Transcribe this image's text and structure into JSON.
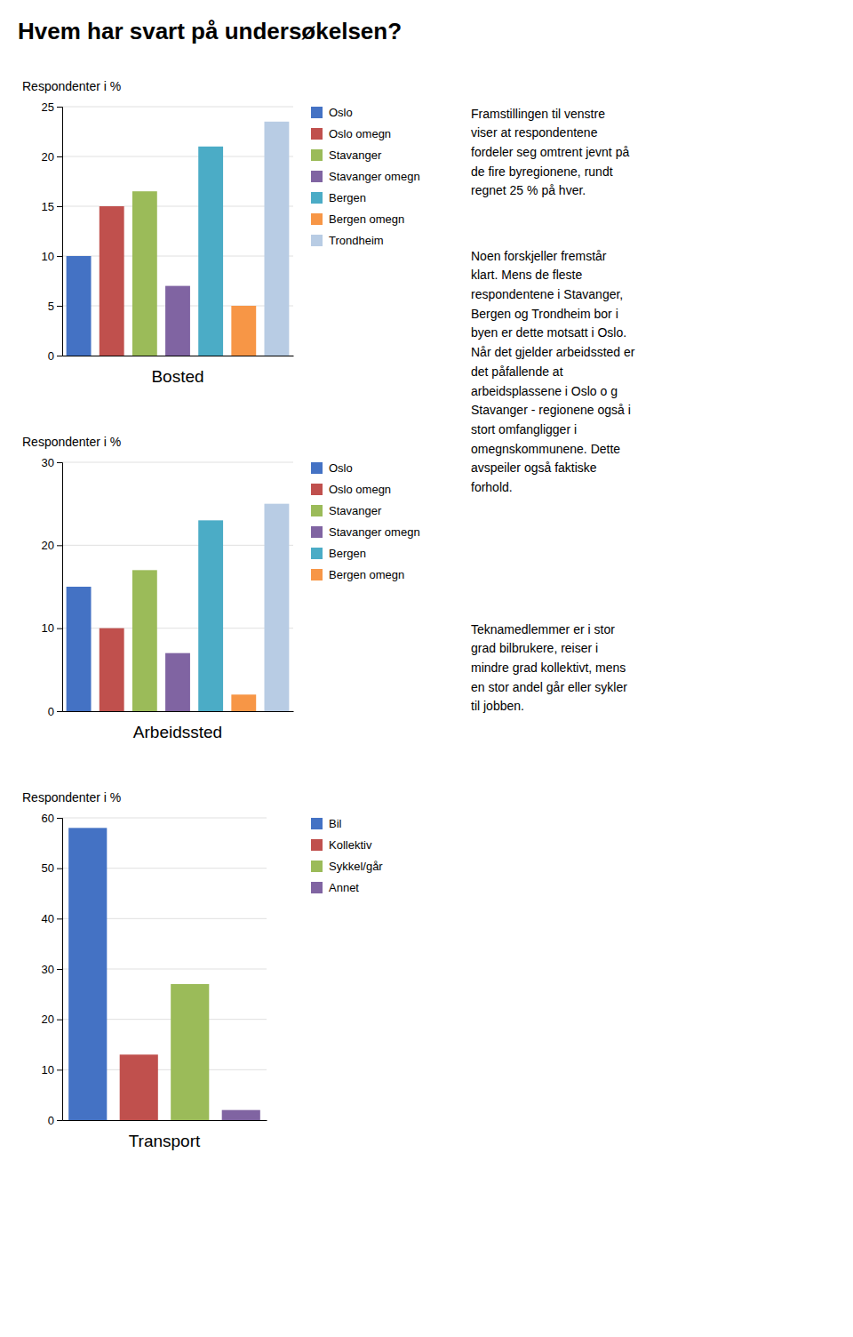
{
  "title": "Hvem har svart på undersøkelsen?",
  "annotations": [
    "Framstillingen til venstre\nviser at respondentene\nfordeler seg omtrent jevnt på\nde fire byregionene, rundt\nregnet 25 % på hver.",
    "Noen forskjeller fremstår\nklart. Mens de fleste\nrespondentene i Stavanger,\nBergen og Trondheim bor i\nbyen er dette motsatt i Oslo.\nNår det gjelder arbeidssted er\ndet påfallende at\narbeidsplassene i Oslo o g\nStavanger - regionene også i\nstort omfangligger i\nomegnskommunene. Dette\navspeiler også faktiske\nforhold.",
    "Teknamedlemmer er i stor\ngrad bilbrukere, reiser i\nmindre grad kollektivt, mens\nen stor andel går eller sykler\ntil jobben."
  ],
  "chart_data": [
    {
      "type": "bar",
      "xlabel": "Bosted",
      "ylabel": "Respondenter i %",
      "categories": [
        "Oslo",
        "Oslo omegn",
        "Stavanger",
        "Stavanger omegn",
        "Bergen",
        "Bergen omegn",
        "Trondheim"
      ],
      "values": [
        10,
        15,
        16.5,
        7,
        21,
        5,
        23.5
      ],
      "colors": [
        "#4472C4",
        "#C0504D",
        "#9BBB59",
        "#8064A2",
        "#4BACC6",
        "#F79646",
        "#B8CCE4"
      ],
      "ylim": [
        0,
        25
      ],
      "yticks": [
        0,
        5,
        10,
        15,
        20,
        25
      ],
      "grid": true,
      "legend": "right",
      "tick_labels": "y"
    },
    {
      "type": "bar",
      "xlabel": "Arbeidssted",
      "ylabel": "Respondenter i %",
      "categories": [
        "Oslo",
        "Oslo omegn",
        "Stavanger",
        "Stavanger omegn",
        "Bergen",
        "Bergen omegn",
        null
      ],
      "values": [
        15,
        10,
        17,
        7,
        23,
        2,
        25
      ],
      "colors": [
        "#4472C4",
        "#C0504D",
        "#9BBB59",
        "#8064A2",
        "#4BACC6",
        "#F79646",
        "#B8CCE4"
      ],
      "ylim": [
        0,
        30
      ],
      "yticks": [
        0,
        10,
        20,
        30
      ],
      "grid": true,
      "legend": "right",
      "tick_labels": "y"
    },
    {
      "type": "bar",
      "xlabel": "Transport",
      "ylabel": "Respondenter i %",
      "categories": [
        "Bil",
        "Kollektiv",
        "Sykkel/går",
        "Annet"
      ],
      "values": [
        58,
        13,
        27,
        2
      ],
      "colors": [
        "#4472C4",
        "#C0504D",
        "#9BBB59",
        "#8064A2"
      ],
      "ylim": [
        0,
        60
      ],
      "yticks": [
        0,
        10,
        20,
        30,
        40,
        50,
        60
      ],
      "grid": true,
      "legend": "right",
      "tick_labels": "y"
    }
  ]
}
